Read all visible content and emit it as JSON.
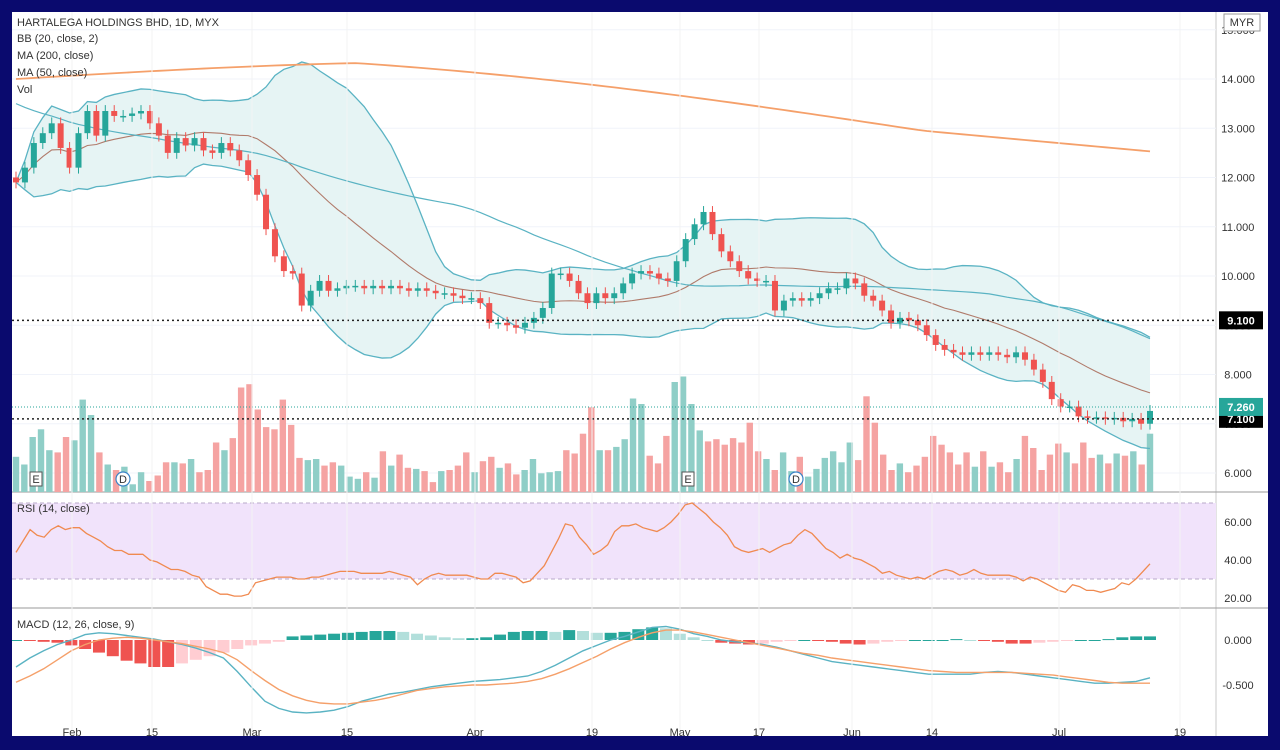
{
  "symbol_title": "HARTALEGA HOLDINGS BHD, 1D, MYX",
  "currency": "MYR",
  "indicators": {
    "bb": "BB (20, close, 2)",
    "ma200": "MA (200, close)",
    "ma50": "MA (50, close)",
    "vol": "Vol",
    "rsi": "RSI (14, close)",
    "macd": "MACD (12, 26, close, 9)"
  },
  "events": [
    "E",
    "D",
    "E",
    "D"
  ],
  "colors": {
    "up": "#26a69a",
    "down": "#ef5350",
    "vol_up": "#8fcec7",
    "vol_down": "#f5a3a2",
    "bb": "#5ab3c3",
    "bb_fill": "#e6f4f4",
    "ma200": "#f5a06a",
    "ma50": "#b07a6a",
    "rsi": "#f08a50",
    "rsi_band": "#f1e3fb",
    "macd": "#5ab3c3",
    "signal": "#f5a06a",
    "hist_up_strong": "#26a69a",
    "hist_up_weak": "#b2dfdb",
    "hist_down_strong": "#ef5350",
    "hist_down_weak": "#ffcdd2"
  },
  "chart_data": [
    {
      "type": "candlestick",
      "title": "HARTALEGA HOLDINGS BHD, 1D, MYX",
      "ylim": [
        5.6,
        14.9
      ],
      "y_ticks": [
        "6.000",
        "7.000",
        "8.000",
        "9.000",
        "10.000",
        "11.000",
        "12.000",
        "13.000",
        "14.000",
        "15.000"
      ],
      "x_ticks": [
        "Feb",
        "15",
        "Mar",
        "15",
        "Apr",
        "19",
        "May",
        "17",
        "Jun",
        "14",
        "Jul",
        "19"
      ],
      "horizontal_levels": [
        "9.100",
        "7.100"
      ],
      "last_price": "7.260",
      "closes": [
        11.9,
        12.2,
        12.7,
        12.9,
        13.1,
        12.6,
        12.2,
        12.9,
        13.35,
        12.85,
        13.35,
        13.25,
        13.25,
        13.3,
        13.35,
        13.1,
        12.85,
        12.5,
        12.8,
        12.65,
        12.8,
        12.55,
        12.5,
        12.7,
        12.55,
        12.35,
        12.05,
        11.65,
        10.95,
        10.4,
        10.1,
        10.05,
        9.4,
        9.7,
        9.9,
        9.7,
        9.75,
        9.8,
        9.8,
        9.75,
        9.8,
        9.75,
        9.8,
        9.75,
        9.7,
        9.75,
        9.7,
        9.65,
        9.65,
        9.6,
        9.55,
        9.55,
        9.45,
        9.05,
        9.05,
        9.0,
        8.95,
        9.05,
        9.15,
        9.35,
        10.05,
        10.05,
        9.9,
        9.65,
        9.45,
        9.65,
        9.55,
        9.65,
        9.85,
        10.05,
        10.1,
        10.05,
        9.95,
        9.9,
        10.3,
        10.75,
        11.05,
        11.3,
        10.85,
        10.5,
        10.3,
        10.1,
        9.95,
        9.9,
        9.9,
        9.3,
        9.5,
        9.55,
        9.5,
        9.55,
        9.65,
        9.75,
        9.75,
        9.95,
        9.85,
        9.6,
        9.5,
        9.3,
        9.05,
        9.15,
        9.1,
        9.0,
        8.8,
        8.6,
        8.5,
        8.45,
        8.4,
        8.45,
        8.4,
        8.45,
        8.4,
        8.35,
        8.45,
        8.3,
        8.1,
        7.85,
        7.5,
        7.35,
        7.35,
        7.15,
        7.12,
        7.13,
        7.1,
        7.12,
        7.05,
        7.1,
        7.0,
        7.26
      ],
      "volumes_relative": [
        0.32,
        0.25,
        0.5,
        0.57,
        0.38,
        0.36,
        0.5,
        0.47,
        0.84,
        0.7,
        0.36,
        0.25,
        0.2,
        0.23,
        0.07,
        0.18,
        0.1,
        0.15,
        0.27,
        0.27,
        0.26,
        0.3,
        0.18,
        0.2,
        0.45,
        0.38,
        0.49,
        0.95,
        0.98,
        0.75,
        0.59,
        0.57,
        0.84,
        0.61,
        0.31,
        0.29,
        0.3,
        0.24,
        0.27,
        0.24,
        0.14,
        0.12,
        0.18,
        0.13,
        0.37,
        0.24,
        0.34,
        0.22,
        0.21,
        0.19,
        0.09,
        0.19,
        0.2,
        0.24,
        0.36,
        0.18,
        0.28,
        0.32,
        0.22,
        0.26,
        0.16,
        0.2,
        0.3,
        0.17,
        0.18,
        0.19,
        0.38,
        0.35,
        0.53,
        0.77,
        0.38,
        0.38,
        0.41,
        0.48,
        0.85,
        0.8,
        0.33,
        0.26,
        0.51,
        1.0,
        1.05,
        0.8,
        0.56,
        0.46,
        0.48,
        0.43,
        0.49,
        0.45,
        0.63,
        0.37,
        0.3,
        0.2,
        0.36,
        0.19,
        0.32,
        0.14,
        0.21,
        0.31,
        0.37,
        0.27,
        0.45,
        0.29,
        0.87,
        0.63,
        0.34,
        0.2,
        0.26,
        0.18,
        0.24,
        0.32,
        0.51,
        0.43,
        0.36,
        0.25,
        0.36,
        0.23,
        0.37,
        0.23,
        0.27,
        0.18,
        0.3,
        0.51,
        0.4,
        0.2,
        0.34,
        0.44,
        0.36,
        0.26,
        0.45,
        0.31,
        0.34,
        0.26,
        0.35,
        0.33,
        0.37,
        0.25,
        0.53
      ]
    },
    {
      "type": "line",
      "title": "RSI (14, close)",
      "ylim": [
        18,
        72
      ],
      "y_ticks": [
        "20.00",
        "40.00",
        "60.00"
      ],
      "band": [
        30,
        70
      ],
      "values": [
        44,
        50,
        56,
        53,
        52,
        56,
        58,
        56,
        57,
        57,
        54,
        52,
        50,
        47,
        45,
        45,
        43,
        43,
        43,
        40,
        39,
        37,
        35,
        35,
        34,
        32,
        31,
        26,
        24,
        22,
        22,
        21,
        21,
        22,
        28,
        29,
        30,
        31,
        31,
        31,
        30,
        30,
        31,
        31,
        32,
        33,
        34,
        34,
        34,
        33,
        33,
        33,
        33,
        34,
        33,
        32,
        31,
        27,
        30,
        32,
        33,
        32,
        32,
        32,
        32,
        31,
        30,
        30,
        33,
        33,
        32,
        31,
        28,
        29,
        33,
        37,
        44,
        51,
        59,
        58,
        52,
        48,
        43,
        45,
        48,
        55,
        58,
        58,
        59,
        57,
        56,
        55,
        57,
        60,
        64,
        69,
        70,
        67,
        64,
        60,
        57,
        53,
        47,
        45,
        44,
        45,
        46,
        44,
        46,
        48,
        49,
        53,
        56,
        54,
        50,
        46,
        44,
        41,
        43,
        41,
        40,
        38,
        36,
        33,
        34,
        32,
        31,
        30,
        31,
        30,
        32,
        34,
        35,
        34,
        32,
        33,
        35,
        33,
        32,
        32,
        32,
        32,
        31,
        29,
        31,
        30,
        28,
        26,
        24,
        23,
        27,
        26,
        24,
        24,
        23,
        24,
        25,
        28,
        27,
        30,
        34,
        38
      ]
    },
    {
      "type": "line",
      "title": "MACD (12, 26, close, 9)",
      "ylim": [
        -0.85,
        0.2
      ],
      "y_ticks": [
        "-0.500",
        "0.000"
      ],
      "macd": [
        -0.3,
        -0.2,
        -0.12,
        -0.05,
        0.0,
        0.06,
        0.08,
        0.07,
        0.05,
        0.03,
        0.01,
        -0.02,
        -0.05,
        -0.09,
        -0.14,
        -0.2,
        -0.35,
        -0.52,
        -0.68,
        -0.76,
        -0.8,
        -0.81,
        -0.8,
        -0.78,
        -0.74,
        -0.68,
        -0.64,
        -0.6,
        -0.58,
        -0.55,
        -0.52,
        -0.5,
        -0.48,
        -0.46,
        -0.45,
        -0.44,
        -0.42,
        -0.4,
        -0.35,
        -0.28,
        -0.2,
        -0.12,
        -0.06,
        0.0,
        0.04,
        0.09,
        0.14,
        0.15,
        0.12,
        0.07,
        0.04,
        0.0,
        -0.02,
        -0.03,
        -0.05,
        -0.08,
        -0.12,
        -0.16,
        -0.2,
        -0.24,
        -0.26,
        -0.28,
        -0.3,
        -0.32,
        -0.34,
        -0.36,
        -0.38,
        -0.38,
        -0.38,
        -0.38,
        -0.36,
        -0.35,
        -0.36,
        -0.38,
        -0.4,
        -0.42,
        -0.44,
        -0.46,
        -0.48,
        -0.48,
        -0.47,
        -0.46,
        -0.42
      ],
      "signal": [
        -0.47,
        -0.4,
        -0.32,
        -0.22,
        -0.12,
        -0.05,
        0.0,
        0.02,
        0.03,
        0.02,
        0.0,
        -0.02,
        -0.04,
        -0.07,
        -0.1,
        -0.14,
        -0.22,
        -0.34,
        -0.45,
        -0.55,
        -0.62,
        -0.67,
        -0.7,
        -0.71,
        -0.71,
        -0.69,
        -0.67,
        -0.64,
        -0.6,
        -0.56,
        -0.54,
        -0.52,
        -0.51,
        -0.5,
        -0.5,
        -0.49,
        -0.48,
        -0.46,
        -0.43,
        -0.38,
        -0.32,
        -0.25,
        -0.18,
        -0.1,
        -0.03,
        0.03,
        0.08,
        0.11,
        0.11,
        0.09,
        0.06,
        0.03,
        0.0,
        -0.03,
        -0.06,
        -0.09,
        -0.12,
        -0.15,
        -0.17,
        -0.2,
        -0.22,
        -0.24,
        -0.26,
        -0.28,
        -0.3,
        -0.32,
        -0.34,
        -0.35,
        -0.36,
        -0.36,
        -0.36,
        -0.36,
        -0.36,
        -0.37,
        -0.38,
        -0.39,
        -0.41,
        -0.43,
        -0.45,
        -0.47,
        -0.48,
        -0.48,
        -0.48
      ],
      "histogram": [
        0.0,
        -0.01,
        -0.02,
        -0.03,
        -0.06,
        -0.1,
        -0.14,
        -0.18,
        -0.23,
        -0.26,
        -0.3,
        -0.3,
        -0.26,
        -0.22,
        -0.18,
        -0.14,
        -0.1,
        -0.06,
        -0.04,
        -0.02,
        0.04,
        0.05,
        0.06,
        0.07,
        0.08,
        0.09,
        0.1,
        0.1,
        0.09,
        0.07,
        0.05,
        0.03,
        0.02,
        0.02,
        0.03,
        0.06,
        0.09,
        0.1,
        0.1,
        0.09,
        0.11,
        0.1,
        0.08,
        0.08,
        0.09,
        0.12,
        0.14,
        0.13,
        0.07,
        0.03,
        0.0,
        -0.03,
        -0.04,
        -0.05,
        -0.04,
        -0.02,
        -0.01,
        0.0,
        -0.01,
        -0.02,
        -0.04,
        -0.05,
        -0.04,
        -0.02,
        -0.01,
        0.0,
        0.0,
        0.0,
        0.01,
        0.0,
        -0.01,
        -0.02,
        -0.04,
        -0.04,
        -0.03,
        -0.02,
        -0.01,
        0.0,
        0.0,
        0.01,
        0.03,
        0.04,
        0.04
      ]
    }
  ]
}
